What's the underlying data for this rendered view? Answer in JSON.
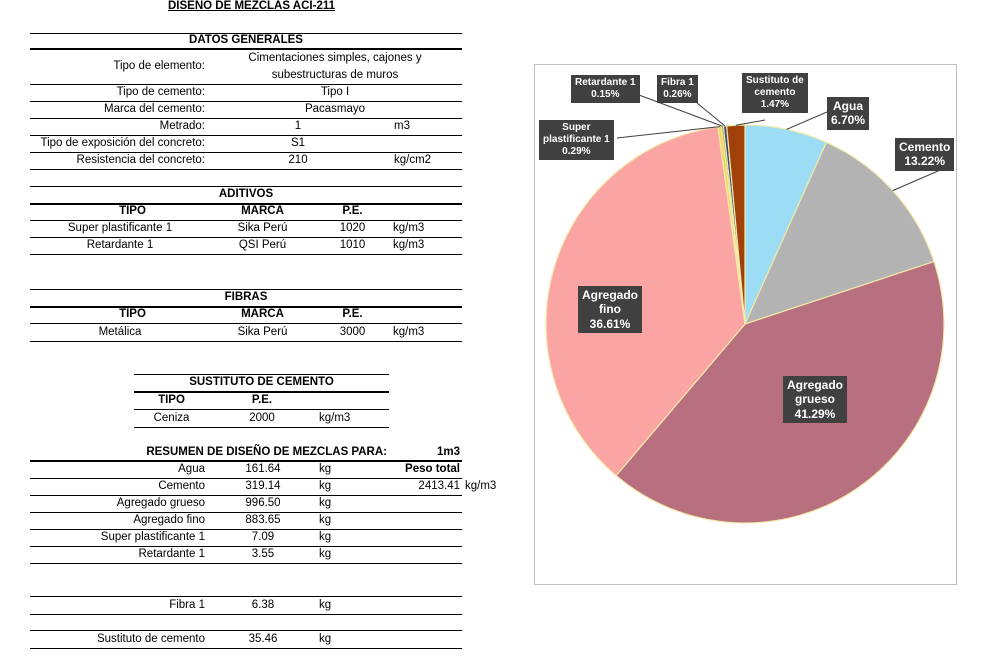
{
  "title": "DISEÑO DE MEZCLAS ACI-211",
  "datos_generales": {
    "header": "DATOS GENERALES",
    "rows": [
      {
        "label": "Tipo de elemento:",
        "value": "Cimentaciones simples, cajones y",
        "value2": "subestructuras de muros"
      },
      {
        "label": "Tipo de cemento:",
        "value": "Tipo I"
      },
      {
        "label": "Marca del cemento:",
        "value": "Pacasmayo"
      },
      {
        "label": "Metrado:",
        "value": "1",
        "unit": "m3"
      },
      {
        "label": "Tipo de exposición del concreto:",
        "value": "S1"
      },
      {
        "label": "Resistencia del concreto:",
        "value": "210",
        "unit": "kg/cm2"
      }
    ]
  },
  "aditivos": {
    "header": "ADITIVOS",
    "cols": [
      "TIPO",
      "MARCA",
      "P.E."
    ],
    "rows": [
      {
        "tipo": "Super plastificante 1",
        "marca": "Sika Perú",
        "pe": "1020",
        "unit": "kg/m3"
      },
      {
        "tipo": "Retardante 1",
        "marca": "QSI Perú",
        "pe": "1010",
        "unit": "kg/m3"
      }
    ]
  },
  "fibras": {
    "header": "FIBRAS",
    "cols": [
      "TIPO",
      "MARCA",
      "P.E."
    ],
    "rows": [
      {
        "tipo": "Metálica",
        "marca": "Sika Perú",
        "pe": "3000",
        "unit": "kg/m3"
      }
    ]
  },
  "sustituto": {
    "header": "SUSTITUTO DE CEMENTO",
    "cols": [
      "TIPO",
      "P.E."
    ],
    "rows": [
      {
        "tipo": "Ceniza",
        "pe": "2000",
        "unit": "kg/m3"
      }
    ]
  },
  "resumen": {
    "header": "RESUMEN DE DISEÑO DE MEZCLAS PARA:",
    "volume": "1m3",
    "peso_total_label": "Peso total",
    "peso_total_value": "2413.41",
    "peso_total_unit": "kg/m3",
    "rows": [
      {
        "label": "Agua",
        "value": "161.64",
        "unit": "kg"
      },
      {
        "label": "Cemento",
        "value": "319.14",
        "unit": "kg"
      },
      {
        "label": "Agregado grueso",
        "value": "996.50",
        "unit": "kg"
      },
      {
        "label": "Agregado fino",
        "value": "883.65",
        "unit": "kg"
      },
      {
        "label": "Super plastificante 1",
        "value": "7.09",
        "unit": "kg"
      },
      {
        "label": "Retardante 1",
        "value": "3.55",
        "unit": "kg"
      }
    ],
    "fibra": {
      "label": "Fibra 1",
      "value": "6.38",
      "unit": "kg"
    },
    "sustituto": {
      "label": "Sustituto de cemento",
      "value": "35.46",
      "unit": "kg"
    }
  },
  "chart_data": {
    "type": "pie",
    "slices": [
      {
        "name": "Agua",
        "value": 6.7,
        "label": "6.70%",
        "color": "#9ddcf5"
      },
      {
        "name": "Cemento",
        "value": 13.22,
        "label": "13.22%",
        "color": "#b3b3b3"
      },
      {
        "name": "Agregado grueso",
        "value": 41.29,
        "label": "41.29%",
        "color": "#b87080"
      },
      {
        "name": "Agregado fino",
        "value": 36.61,
        "label": "36.61%",
        "color": "#fba4a4"
      },
      {
        "name": "Super plastificante 1",
        "value": 0.29,
        "label": "0.29%",
        "color": "#f0d860"
      },
      {
        "name": "Retardante 1",
        "value": 0.15,
        "label": "0.15%",
        "color": "#6a8a3a"
      },
      {
        "name": "Fibra 1",
        "value": 0.26,
        "label": "0.26%",
        "color": "#3a4a7a"
      },
      {
        "name": "Sustituto de cemento",
        "value": 1.47,
        "label": "1.47%",
        "color": "#a0410c"
      }
    ],
    "slice_border": "#f3e9a8",
    "label_bg": "#404040"
  }
}
